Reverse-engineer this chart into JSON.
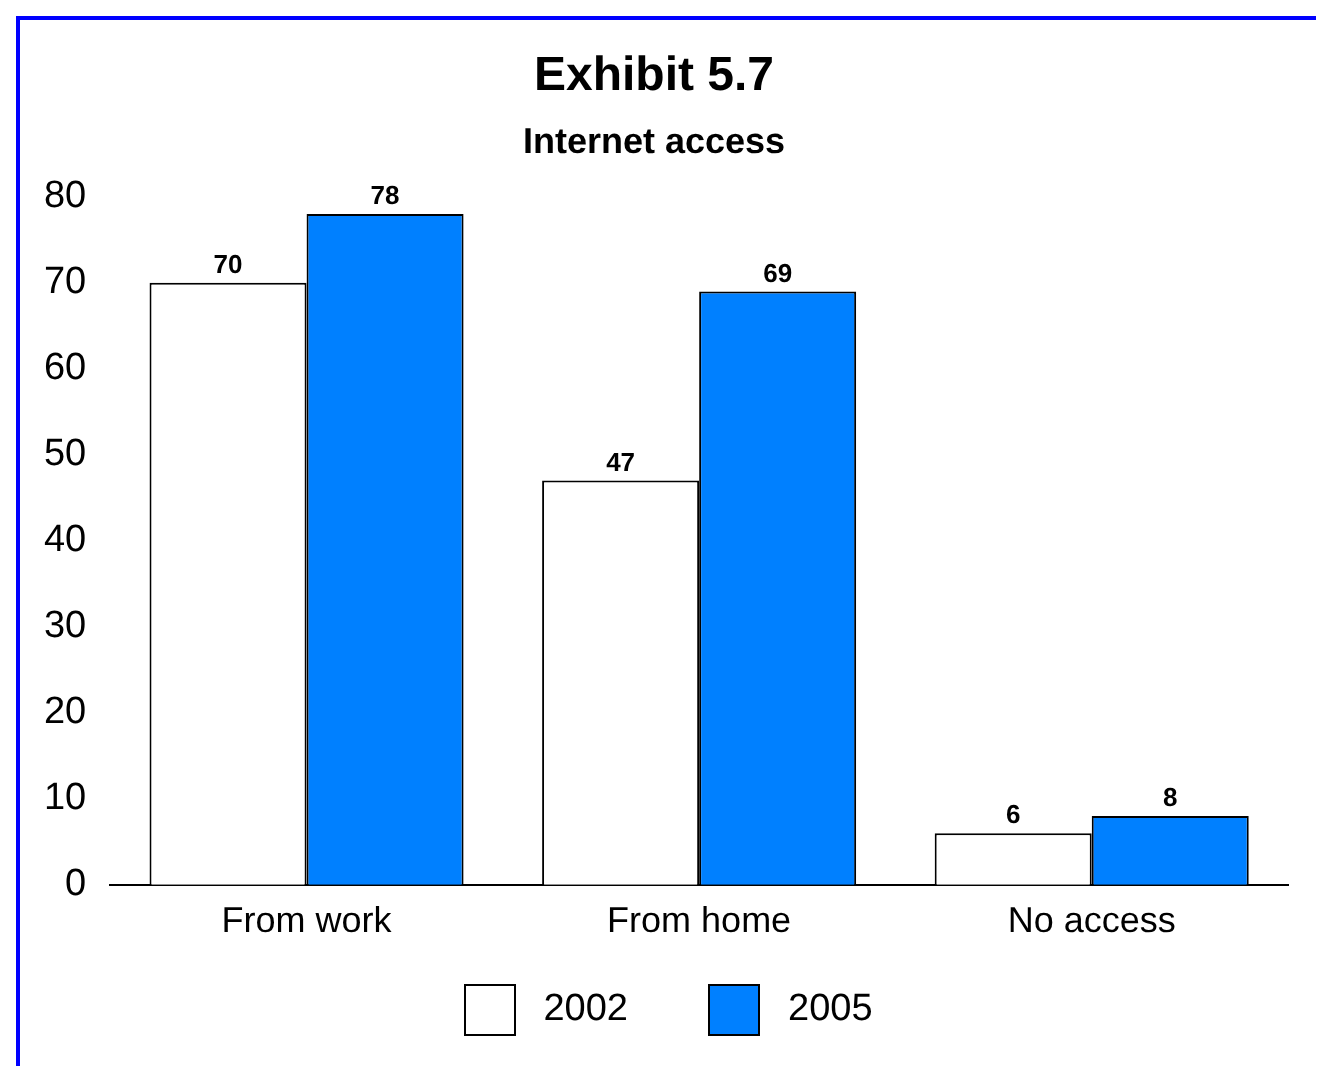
{
  "chart_data": {
    "type": "bar",
    "title": "Exhibit 5.7",
    "subtitle": "Internet access",
    "categories": [
      "From work",
      "From home",
      "No access"
    ],
    "series": [
      {
        "name": "2002",
        "color": "#ffffff",
        "values": [
          70,
          47,
          6
        ]
      },
      {
        "name": "2005",
        "color": "#0080ff",
        "values": [
          78,
          69,
          8
        ]
      }
    ],
    "ylim": [
      0,
      80
    ],
    "yticks": [
      0,
      10,
      20,
      30,
      40,
      50,
      60,
      70,
      80
    ],
    "grid": false,
    "legend": "bottom",
    "data_labels": true
  }
}
